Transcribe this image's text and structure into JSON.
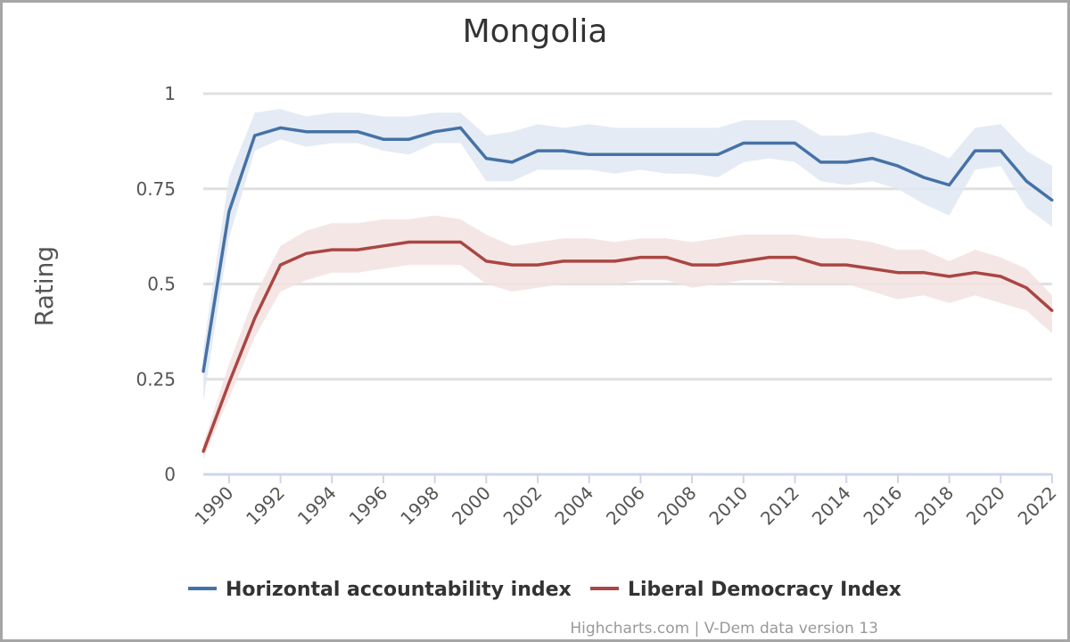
{
  "chart_data": {
    "type": "line",
    "title": "Mongolia",
    "ylabel": "Rating",
    "xlabel": "",
    "ylim": [
      0,
      1
    ],
    "xlim": [
      1989,
      2022
    ],
    "y_ticks": [
      "0",
      "0.25",
      "0.5",
      "0.75",
      "1"
    ],
    "x_ticks": [
      "1990",
      "1992",
      "1994",
      "1996",
      "1998",
      "2000",
      "2002",
      "2004",
      "2006",
      "2008",
      "2010",
      "2012",
      "2014",
      "2016",
      "2018",
      "2020",
      "2022"
    ],
    "grid": true,
    "legend_position": "bottom",
    "x": [
      1989,
      1990,
      1991,
      1992,
      1993,
      1994,
      1995,
      1996,
      1997,
      1998,
      1999,
      2000,
      2001,
      2002,
      2003,
      2004,
      2005,
      2006,
      2007,
      2008,
      2009,
      2010,
      2011,
      2012,
      2013,
      2014,
      2015,
      2016,
      2017,
      2018,
      2019,
      2020,
      2021,
      2022
    ],
    "series": [
      {
        "name": "Horizontal accountability index",
        "color": "#4572a7",
        "band_color": "#e1e8f2",
        "values": [
          0.27,
          0.69,
          0.89,
          0.91,
          0.9,
          0.9,
          0.9,
          0.88,
          0.88,
          0.9,
          0.91,
          0.83,
          0.82,
          0.85,
          0.85,
          0.84,
          0.84,
          0.84,
          0.84,
          0.84,
          0.84,
          0.87,
          0.87,
          0.87,
          0.82,
          0.82,
          0.83,
          0.81,
          0.78,
          0.76,
          0.85,
          0.85,
          0.77,
          0.72
        ],
        "upper": [
          0.33,
          0.78,
          0.95,
          0.96,
          0.94,
          0.95,
          0.95,
          0.94,
          0.94,
          0.95,
          0.95,
          0.89,
          0.9,
          0.92,
          0.91,
          0.92,
          0.91,
          0.91,
          0.91,
          0.91,
          0.91,
          0.93,
          0.93,
          0.93,
          0.89,
          0.89,
          0.9,
          0.88,
          0.86,
          0.83,
          0.91,
          0.92,
          0.85,
          0.81
        ],
        "lower": [
          0.19,
          0.62,
          0.85,
          0.88,
          0.86,
          0.87,
          0.87,
          0.85,
          0.84,
          0.87,
          0.87,
          0.77,
          0.77,
          0.8,
          0.8,
          0.8,
          0.79,
          0.8,
          0.79,
          0.79,
          0.78,
          0.82,
          0.83,
          0.82,
          0.77,
          0.76,
          0.77,
          0.75,
          0.71,
          0.68,
          0.8,
          0.81,
          0.7,
          0.65
        ]
      },
      {
        "name": "Liberal Democracy Index",
        "color": "#aa4643",
        "band_color": "#f3e2e2",
        "values": [
          0.06,
          0.24,
          0.41,
          0.55,
          0.58,
          0.59,
          0.59,
          0.6,
          0.61,
          0.61,
          0.61,
          0.56,
          0.55,
          0.55,
          0.56,
          0.56,
          0.56,
          0.57,
          0.57,
          0.55,
          0.55,
          0.56,
          0.57,
          0.57,
          0.55,
          0.55,
          0.54,
          0.53,
          0.53,
          0.52,
          0.53,
          0.52,
          0.49,
          0.43
        ],
        "upper": [
          0.08,
          0.29,
          0.47,
          0.6,
          0.64,
          0.66,
          0.66,
          0.67,
          0.67,
          0.68,
          0.67,
          0.63,
          0.6,
          0.61,
          0.62,
          0.62,
          0.61,
          0.62,
          0.62,
          0.61,
          0.62,
          0.63,
          0.63,
          0.63,
          0.62,
          0.62,
          0.61,
          0.59,
          0.59,
          0.56,
          0.59,
          0.57,
          0.54,
          0.47
        ],
        "lower": [
          0.04,
          0.2,
          0.36,
          0.48,
          0.51,
          0.53,
          0.53,
          0.54,
          0.55,
          0.55,
          0.55,
          0.5,
          0.48,
          0.49,
          0.5,
          0.5,
          0.5,
          0.51,
          0.51,
          0.49,
          0.5,
          0.51,
          0.51,
          0.5,
          0.5,
          0.5,
          0.48,
          0.46,
          0.47,
          0.45,
          0.47,
          0.45,
          0.43,
          0.37
        ]
      }
    ],
    "credits": "Highcharts.com | V-Dem data version 13"
  }
}
